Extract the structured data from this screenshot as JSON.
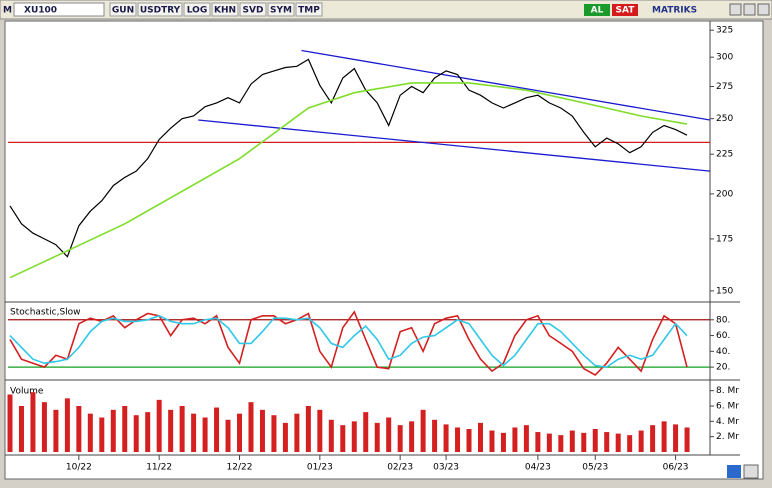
{
  "toolbar": {
    "mode": "M",
    "symbol": "XU100",
    "buttons": [
      "GUN",
      "USDTRY",
      "LOG",
      "KHN",
      "SVD",
      "SYM",
      "TMP"
    ],
    "buy": "AL",
    "sell": "SAT",
    "brand": "MATRIKS"
  },
  "chart_data": [
    {
      "type": "line",
      "log": true,
      "ylim": [
        146,
        333
      ],
      "yticks": [
        150,
        175,
        200,
        225,
        250,
        275,
        300,
        325
      ],
      "series": [
        {
          "color": "#000000",
          "values": [
            193,
            183,
            178,
            175,
            172,
            166,
            182,
            190,
            196,
            205,
            210,
            214,
            222,
            235,
            243,
            250,
            252,
            259,
            262,
            266,
            262,
            277,
            285,
            288,
            291,
            292,
            298,
            276,
            262,
            282,
            290,
            272,
            262,
            245,
            268,
            275,
            270,
            282,
            288,
            285,
            272,
            268,
            262,
            258,
            262,
            266,
            268,
            262,
            258,
            252,
            240,
            230,
            236,
            232,
            226,
            230,
            240,
            245,
            242,
            238
          ]
        },
        {
          "color": "#7fdd2a",
          "x": [
            0,
            10,
            20,
            26,
            30,
            35,
            40,
            45,
            50,
            55,
            59
          ],
          "values": [
            156,
            183,
            222,
            258,
            270,
            278,
            278,
            272,
            262,
            252,
            246
          ]
        }
      ],
      "trendlines": [
        {
          "color": "#1a1ad0",
          "x": [
            25.4,
            61
          ],
          "values": [
            306,
            249
          ]
        },
        {
          "color": "#1a1ad0",
          "x": [
            16.4,
            61
          ],
          "values": [
            249,
            214
          ]
        }
      ],
      "hlines": [
        {
          "value": 233,
          "color": "#d42020"
        }
      ]
    },
    {
      "type": "line",
      "title": "Stochastic,Slow",
      "ylim": [
        10,
        100
      ],
      "yticks": [
        {
          "value": 20,
          "label": "20."
        },
        {
          "value": 40,
          "label": "40."
        },
        {
          "value": 60,
          "label": "60."
        },
        {
          "value": 80,
          "label": "80."
        }
      ],
      "series": [
        {
          "color": "#d42020",
          "values": [
            55,
            30,
            25,
            20,
            35,
            30,
            75,
            82,
            78,
            85,
            70,
            80,
            88,
            85,
            60,
            80,
            82,
            75,
            85,
            45,
            25,
            80,
            85,
            85,
            75,
            80,
            88,
            40,
            20,
            70,
            90,
            55,
            20,
            18,
            65,
            70,
            40,
            75,
            82,
            85,
            55,
            30,
            15,
            25,
            60,
            80,
            85,
            60,
            50,
            40,
            18,
            10,
            25,
            45,
            30,
            15,
            55,
            85,
            75,
            20
          ]
        },
        {
          "color": "#2ec8e8",
          "values": [
            60,
            45,
            30,
            25,
            27,
            30,
            45,
            65,
            78,
            82,
            78,
            78,
            80,
            85,
            78,
            75,
            75,
            80,
            82,
            70,
            50,
            50,
            65,
            82,
            82,
            80,
            82,
            70,
            50,
            45,
            60,
            72,
            55,
            30,
            35,
            50,
            58,
            60,
            70,
            80,
            75,
            55,
            35,
            22,
            35,
            55,
            75,
            75,
            65,
            50,
            35,
            22,
            20,
            30,
            35,
            30,
            35,
            55,
            75,
            60
          ]
        }
      ],
      "hlines": [
        {
          "value": 80,
          "color": "#a01010"
        },
        {
          "value": 20,
          "color": "#10a020"
        }
      ]
    },
    {
      "type": "bar",
      "title": "Volume",
      "color": "#d42020",
      "ylim": [
        0,
        9
      ],
      "yticks": [
        {
          "value": 2,
          "label": "2. Mr"
        },
        {
          "value": 4,
          "label": "4. Mr"
        },
        {
          "value": 6,
          "label": "6. Mr"
        },
        {
          "value": 8,
          "label": "8. Mr"
        }
      ],
      "categories": [
        null,
        null,
        null,
        null,
        null,
        null,
        "10/22",
        null,
        null,
        null,
        null,
        null,
        null,
        "11/22",
        null,
        null,
        null,
        null,
        null,
        null,
        "12/22",
        null,
        null,
        null,
        null,
        null,
        null,
        "01/23",
        null,
        null,
        null,
        null,
        null,
        null,
        "02/23",
        null,
        null,
        null,
        "03/23",
        null,
        null,
        null,
        null,
        null,
        null,
        null,
        "04/23",
        null,
        null,
        null,
        null,
        "05/23",
        null,
        null,
        null,
        null,
        null,
        null,
        "06/23",
        null
      ],
      "values": [
        7.5,
        6,
        7.8,
        6.5,
        5.5,
        7,
        6,
        5,
        4.5,
        5.5,
        6,
        4.8,
        5.2,
        6.8,
        5.5,
        6,
        5,
        4.5,
        5.8,
        4.2,
        5,
        6.5,
        5.5,
        4.8,
        3.8,
        5,
        6,
        5.5,
        4.2,
        3.5,
        4,
        5.2,
        3.8,
        4.5,
        3.5,
        4,
        5.5,
        4.2,
        3.6,
        3.2,
        3,
        3.8,
        2.8,
        2.5,
        3.2,
        3.5,
        2.6,
        2.4,
        2.2,
        2.8,
        2.5,
        3,
        2.6,
        2.4,
        2.2,
        2.8,
        3.5,
        4,
        3.6,
        3.2
      ]
    }
  ]
}
